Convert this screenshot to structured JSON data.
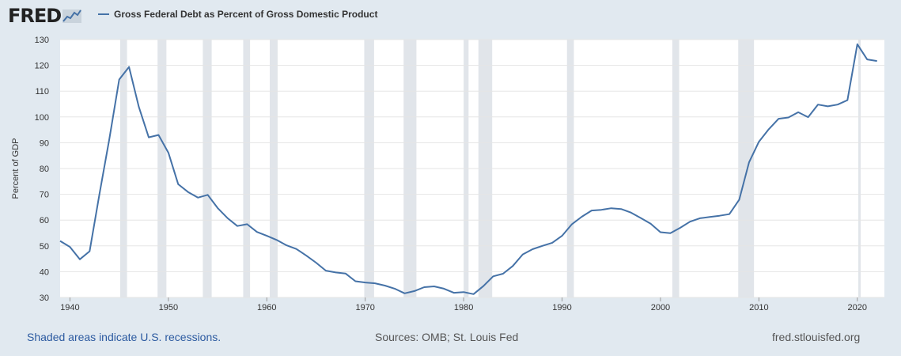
{
  "header": {
    "logo_text": "FRED",
    "logo_icon": "line-graph-icon",
    "legend_label": "Gross Federal Debt as Percent of Gross Domestic Product"
  },
  "footer": {
    "recession_note": "Shaded areas indicate U.S. recessions.",
    "sources": "Sources: OMB; St. Louis Fed",
    "site": "fred.stlouisfed.org"
  },
  "colors": {
    "line": "#4572a7",
    "background": "#e1e9f0",
    "recession": "#e1e5ea",
    "grid": "#e5e5e5"
  },
  "chart_data": {
    "type": "line",
    "title": "",
    "xlabel": "",
    "ylabel": "Percent of GDP",
    "xlim": [
      1939,
      2022.75
    ],
    "ylim": [
      30,
      130
    ],
    "x_ticks": [
      1940,
      1950,
      1960,
      1970,
      1980,
      1990,
      2000,
      2010,
      2020
    ],
    "y_ticks": [
      30,
      40,
      50,
      60,
      70,
      80,
      90,
      100,
      110,
      120,
      130
    ],
    "grid": true,
    "legend_position": "top-left",
    "recessions": [
      [
        1945.1,
        1945.8
      ],
      [
        1948.9,
        1949.8
      ],
      [
        1953.5,
        1954.4
      ],
      [
        1957.6,
        1958.3
      ],
      [
        1960.3,
        1961.1
      ],
      [
        1969.9,
        1970.9
      ],
      [
        1973.9,
        1975.2
      ],
      [
        1980.0,
        1980.5
      ],
      [
        1981.5,
        1982.9
      ],
      [
        1990.5,
        1991.2
      ],
      [
        2001.2,
        2001.9
      ],
      [
        2007.9,
        2009.5
      ],
      [
        2020.1,
        2020.3
      ]
    ],
    "series": [
      {
        "name": "Gross Federal Debt as Percent of Gross Domestic Product",
        "x": [
          1939,
          1940,
          1941,
          1942,
          1943,
          1944,
          1945,
          1946,
          1947,
          1948,
          1949,
          1950,
          1951,
          1952,
          1953,
          1954,
          1955,
          1956,
          1957,
          1958,
          1959,
          1960,
          1961,
          1962,
          1963,
          1964,
          1965,
          1966,
          1967,
          1968,
          1969,
          1970,
          1971,
          1972,
          1973,
          1974,
          1975,
          1976,
          1977,
          1978,
          1979,
          1980,
          1981,
          1982,
          1983,
          1984,
          1985,
          1986,
          1987,
          1988,
          1989,
          1990,
          1991,
          1992,
          1993,
          1994,
          1995,
          1996,
          1997,
          1998,
          1999,
          2000,
          2001,
          2002,
          2003,
          2004,
          2005,
          2006,
          2007,
          2008,
          2009,
          2010,
          2011,
          2012,
          2013,
          2014,
          2015,
          2016,
          2017,
          2018,
          2019,
          2020,
          2021,
          2022
        ],
        "values": [
          51.9,
          49.6,
          44.8,
          47.9,
          70.2,
          91.4,
          114.5,
          119.4,
          103.9,
          92.1,
          93.0,
          86.1,
          73.9,
          70.9,
          68.7,
          69.8,
          64.7,
          60.8,
          57.7,
          58.4,
          55.4,
          53.9,
          52.3,
          50.2,
          48.8,
          46.3,
          43.5,
          40.4,
          39.7,
          39.3,
          36.3,
          35.8,
          35.5,
          34.6,
          33.4,
          31.6,
          32.5,
          34.0,
          34.3,
          33.4,
          31.8,
          32.1,
          31.3,
          34.4,
          38.2,
          39.2,
          42.2,
          46.7,
          48.7,
          50.0,
          51.2,
          53.9,
          58.4,
          61.3,
          63.7,
          64.0,
          64.6,
          64.3,
          62.9,
          60.8,
          58.6,
          55.3,
          54.9,
          57.0,
          59.4,
          60.7,
          61.2,
          61.7,
          62.3,
          67.9,
          82.4,
          90.4,
          95.2,
          99.3,
          99.8,
          101.8,
          99.9,
          104.8,
          104.1,
          104.8,
          106.5,
          128.2,
          122.3,
          121.7
        ]
      }
    ]
  }
}
